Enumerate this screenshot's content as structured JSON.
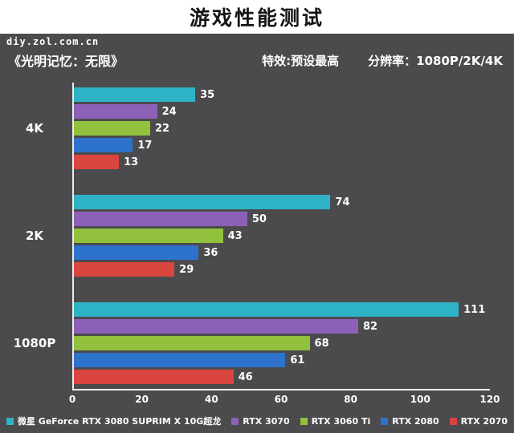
{
  "watermark": "diy.zol.com.cn",
  "chart_data": {
    "type": "bar",
    "orientation": "horizontal",
    "title": "游戏性能测试",
    "subtitle": "《光明记忆：无限》",
    "annotations": {
      "effects": "特效:预设最高",
      "resolution": "分辨率：1080P/2K/4K"
    },
    "categories": [
      "4K",
      "2K",
      "1080P"
    ],
    "series": [
      {
        "name": "微星 GeForce RTX 3080 SUPRIM X 10G超龙",
        "color": "#2eb3c6",
        "values": [
          35,
          74,
          111
        ]
      },
      {
        "name": "RTX 3070",
        "color": "#8d60b8",
        "values": [
          24,
          50,
          82
        ]
      },
      {
        "name": "RTX 3060 Ti",
        "color": "#92c13e",
        "values": [
          22,
          43,
          68
        ]
      },
      {
        "name": "RTX 2080",
        "color": "#2d72cc",
        "values": [
          17,
          36,
          61
        ]
      },
      {
        "name": "RTX 2070",
        "color": "#d9453f",
        "values": [
          13,
          29,
          46
        ]
      }
    ],
    "xlim": [
      0,
      120
    ],
    "xticks": [
      0,
      20,
      40,
      60,
      80,
      100,
      120
    ],
    "grid": false,
    "value_labels": true,
    "legend_position": "bottom",
    "background_color": "#4b4b4d",
    "axis_color": "#ececec"
  }
}
